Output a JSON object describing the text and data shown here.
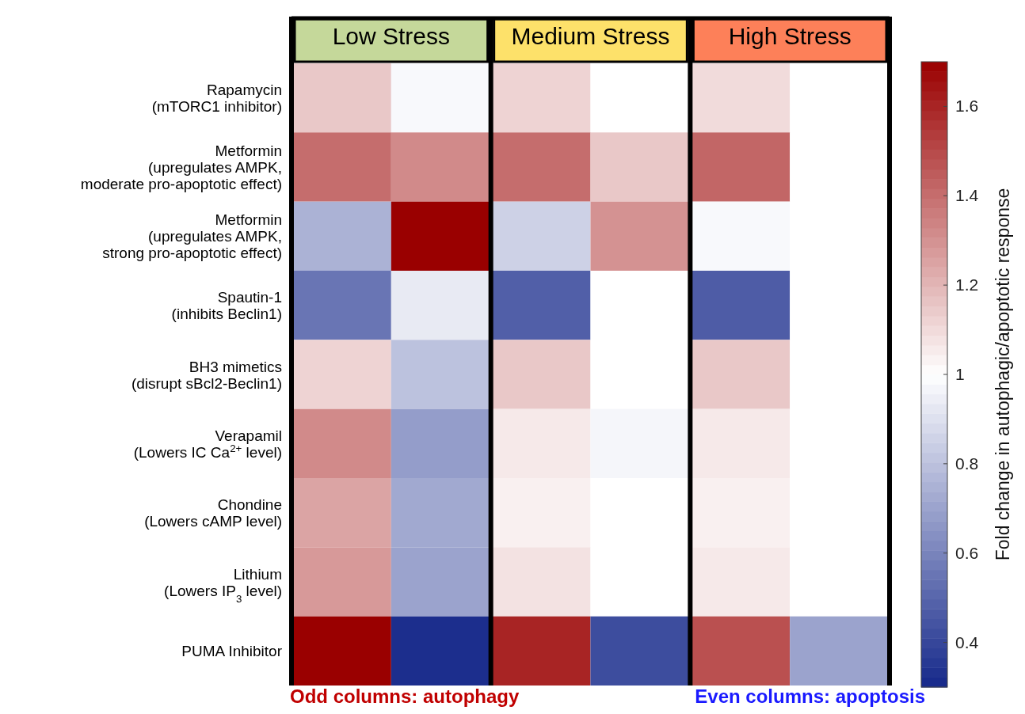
{
  "chart_data": {
    "type": "heatmap",
    "clabel": "Fold change in autophagic/apoptotic response",
    "categories": [
      null,
      null,
      null,
      null,
      null,
      null
    ],
    "y_categories": [
      "Rapamycin\n(mTORC1 inhibitor)",
      "Metformin\n(upregulates AMPK,\nmoderate pro-apoptotic effect)",
      "Metformin\n(upregulates AMPK,\nstrong pro-apoptotic effect)",
      "Spautin-1\n(inhibits Beclin1)",
      "BH3 mimetics\n(disrupt sBcl2-Beclin1)",
      "Verapamil\n(Lowers IC Ca$^{2+}$ level)",
      "Chondine\n(Lowers cAMP level)",
      "Lithium\n(Lowers IP$_{3}$ level)",
      "PUMA Inhibitor"
    ],
    "cells": [
      [
        1.15,
        0.98,
        1.12,
        1.0,
        1.1,
        1.0
      ],
      [
        1.4,
        1.32,
        1.4,
        1.15,
        1.42,
        1.0
      ],
      [
        0.75,
        1.7,
        0.85,
        1.3,
        0.98,
        1.0
      ],
      [
        0.55,
        0.93,
        0.48,
        1.0,
        0.47,
        1.0
      ],
      [
        1.12,
        0.8,
        1.15,
        1.0,
        1.15,
        1.0
      ],
      [
        1.32,
        0.68,
        1.06,
        0.97,
        1.06,
        1.0
      ],
      [
        1.25,
        0.72,
        1.04,
        1.0,
        1.04,
        1.0
      ],
      [
        1.28,
        0.7,
        1.08,
        1.0,
        1.06,
        1.0
      ],
      [
        1.7,
        0.32,
        1.6,
        0.42,
        1.48,
        0.7
      ]
    ],
    "clim": [
      0.3,
      1.7
    ],
    "cticks": [
      0.4,
      0.6,
      0.8,
      1,
      1.2,
      1.4,
      1.6
    ],
    "annotations": [
      "Low Stress",
      "Medium Stress",
      "High Stress",
      "Odd columns: autophagy",
      "Even columns: apoptosis"
    ]
  }
}
